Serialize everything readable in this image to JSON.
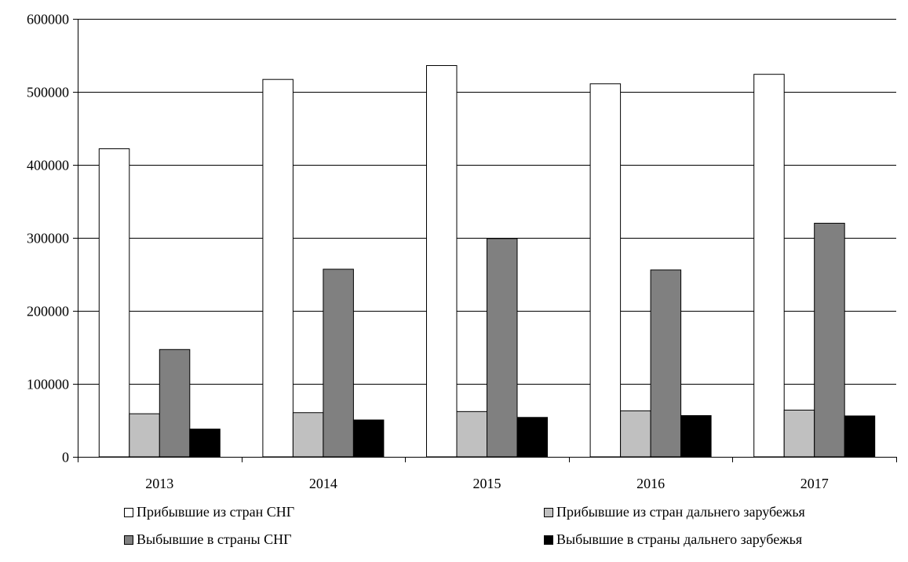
{
  "chart_data": {
    "type": "bar",
    "categories": [
      "2013",
      "2014",
      "2015",
      "2016",
      "2017"
    ],
    "series": [
      {
        "name": "Прибывшие из стран СНГ",
        "color": "#ffffff",
        "values": [
          422000,
          517000,
          536000,
          511000,
          524000
        ]
      },
      {
        "name": "Прибывшие из стран дальнего зарубежья",
        "color": "#c0c0c0",
        "values": [
          59000,
          60500,
          62000,
          63000,
          64000
        ]
      },
      {
        "name": "Выбывшие в страны СНГ",
        "color": "#808080",
        "values": [
          147000,
          257000,
          299000,
          256000,
          320000
        ]
      },
      {
        "name": "Выбывшие в страны дальнего зарубежья",
        "color": "#000000",
        "values": [
          38000,
          50500,
          54000,
          56500,
          56000
        ]
      }
    ],
    "y_ticks": [
      "0",
      "100000",
      "200000",
      "300000",
      "400000",
      "500000",
      "600000"
    ],
    "ylim": [
      0,
      600000
    ],
    "grid": true,
    "legend_position": "bottom"
  }
}
